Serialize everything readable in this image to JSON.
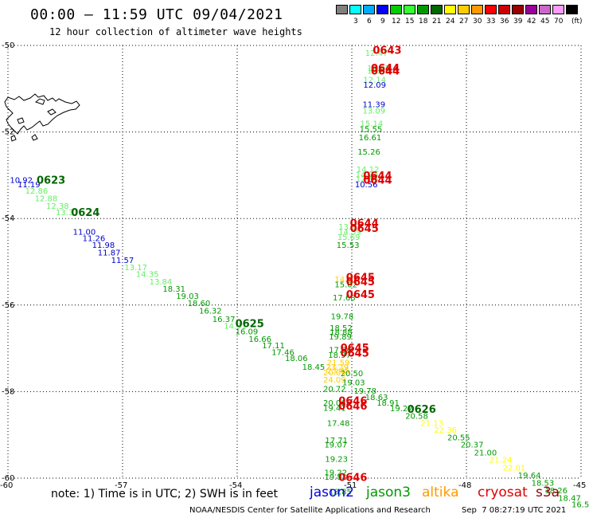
{
  "header": {
    "title": "00:00 — 11:59 UTC 09/04/2021",
    "subtitle": "12 hour collection of altimeter wave heights"
  },
  "colorbar": {
    "unit": "(ft)",
    "swatches": [
      {
        "color": "#808080",
        "label": ""
      },
      {
        "color": "#00ffff",
        "label": "3"
      },
      {
        "color": "#00aaff",
        "label": "6"
      },
      {
        "color": "#0000ff",
        "label": "9"
      },
      {
        "color": "#00cc00",
        "label": "12"
      },
      {
        "color": "#33ff33",
        "label": "15"
      },
      {
        "color": "#009900",
        "label": "18"
      },
      {
        "color": "#006600",
        "label": "21"
      },
      {
        "color": "#ffff00",
        "label": "24"
      },
      {
        "color": "#ffcc00",
        "label": "27"
      },
      {
        "color": "#ff9900",
        "label": "30"
      },
      {
        "color": "#ff0000",
        "label": "33"
      },
      {
        "color": "#cc0000",
        "label": "36"
      },
      {
        "color": "#990000",
        "label": "39"
      },
      {
        "color": "#990099",
        "label": "42"
      },
      {
        "color": "#cc66cc",
        "label": "45"
      },
      {
        "color": "#ff99ff",
        "label": "70"
      },
      {
        "color": "#000000",
        "label": ""
      }
    ]
  },
  "axes": {
    "lat_ticks": [
      "-50",
      "-52",
      "-54",
      "-56",
      "-58",
      "-60"
    ],
    "lon_ticks": [
      "-60",
      "-57",
      "-54",
      "-51",
      "-48",
      "-45"
    ]
  },
  "observations": [
    {
      "lon": -50.65,
      "lat": -50.17,
      "text": "12.47",
      "color": "#66ee66"
    },
    {
      "lon": -50.6,
      "lat": -50.52,
      "text": "12.65",
      "color": "#66ee66"
    },
    {
      "lon": -50.6,
      "lat": -50.58,
      "text": "12.88",
      "color": "#66ee66"
    },
    {
      "lon": -50.7,
      "lat": -50.78,
      "text": "12.14",
      "color": "#66ee66"
    },
    {
      "lon": -50.7,
      "lat": -50.9,
      "text": "12.09",
      "color": "#0000cc"
    },
    {
      "lon": -50.72,
      "lat": -51.35,
      "text": "11.39",
      "color": "#0000cc"
    },
    {
      "lon": -50.72,
      "lat": -51.5,
      "text": "13.09",
      "color": "#66ee66"
    },
    {
      "lon": -50.78,
      "lat": -51.8,
      "text": "15.14",
      "color": "#66ee66"
    },
    {
      "lon": -50.8,
      "lat": -51.92,
      "text": "15.55",
      "color": "#009900"
    },
    {
      "lon": -50.82,
      "lat": -52.12,
      "text": "16.61",
      "color": "#009900"
    },
    {
      "lon": -50.85,
      "lat": -52.45,
      "text": "15.26",
      "color": "#009900"
    },
    {
      "lon": -50.88,
      "lat": -52.85,
      "text": "14.12",
      "color": "#66ee66"
    },
    {
      "lon": -50.9,
      "lat": -52.97,
      "text": "14.24",
      "color": "#66ee66"
    },
    {
      "lon": -50.9,
      "lat": -53.08,
      "text": "12.55",
      "color": "#66ee66"
    },
    {
      "lon": -50.92,
      "lat": -53.2,
      "text": "10.56",
      "color": "#0000cc"
    },
    {
      "lon": -51.35,
      "lat": -54.18,
      "text": "13.53",
      "color": "#66ee66"
    },
    {
      "lon": -51.35,
      "lat": -54.3,
      "text": "14.59",
      "color": "#66ee66"
    },
    {
      "lon": -51.38,
      "lat": -54.42,
      "text": "15.69",
      "color": "#66ee66"
    },
    {
      "lon": -51.4,
      "lat": -54.6,
      "text": "15.53",
      "color": "#009900"
    },
    {
      "lon": -51.45,
      "lat": -55.4,
      "text": "14.93",
      "color": "#ffcc00"
    },
    {
      "lon": -51.45,
      "lat": -55.52,
      "text": "15.02",
      "color": "#009900"
    },
    {
      "lon": -51.5,
      "lat": -55.82,
      "text": "17.68",
      "color": "#009900"
    },
    {
      "lon": -51.55,
      "lat": -56.25,
      "text": "19.78",
      "color": "#009900"
    },
    {
      "lon": -51.58,
      "lat": -56.52,
      "text": "18.52",
      "color": "#009900"
    },
    {
      "lon": -51.58,
      "lat": -56.62,
      "text": "18.88",
      "color": "#009900"
    },
    {
      "lon": -51.6,
      "lat": -56.72,
      "text": "19.89",
      "color": "#009900"
    },
    {
      "lon": -51.6,
      "lat": -57.03,
      "text": "17.96",
      "color": "#009900"
    },
    {
      "lon": -51.62,
      "lat": -57.15,
      "text": "18.97",
      "color": "#009900"
    },
    {
      "lon": -51.65,
      "lat": -57.32,
      "text": "21.59",
      "color": "#ffcc00"
    },
    {
      "lon": -51.68,
      "lat": -57.42,
      "text": "23.29",
      "color": "#ffcc00"
    },
    {
      "lon": -51.65,
      "lat": -57.5,
      "text": "23.45",
      "color": "#ffcc00"
    },
    {
      "lon": -51.3,
      "lat": -57.57,
      "text": "20.50",
      "color": "#009900"
    },
    {
      "lon": -51.75,
      "lat": -57.55,
      "text": "20.09",
      "color": "#ffcc00"
    },
    {
      "lon": -51.75,
      "lat": -57.72,
      "text": "24.09",
      "color": "#ffcc00"
    },
    {
      "lon": -51.75,
      "lat": -57.93,
      "text": "20.72",
      "color": "#009900"
    },
    {
      "lon": -51.25,
      "lat": -57.78,
      "text": "19.03",
      "color": "#009900"
    },
    {
      "lon": -50.95,
      "lat": -57.97,
      "text": "19.78",
      "color": "#009900"
    },
    {
      "lon": -50.65,
      "lat": -58.12,
      "text": "18.63",
      "color": "#009900"
    },
    {
      "lon": -50.35,
      "lat": -58.25,
      "text": "18.91",
      "color": "#009900"
    },
    {
      "lon": -51.75,
      "lat": -58.25,
      "text": "20.06",
      "color": "#009900"
    },
    {
      "lon": -51.75,
      "lat": -58.37,
      "text": "19.41",
      "color": "#009900"
    },
    {
      "lon": -51.65,
      "lat": -58.72,
      "text": "17.48",
      "color": "#009900"
    },
    {
      "lon": -51.7,
      "lat": -59.12,
      "text": "17.71",
      "color": "#009900"
    },
    {
      "lon": -51.72,
      "lat": -59.22,
      "text": "19.07",
      "color": "#009900"
    },
    {
      "lon": -51.7,
      "lat": -59.55,
      "text": "19.23",
      "color": "#009900"
    },
    {
      "lon": -51.72,
      "lat": -59.86,
      "text": "19.22",
      "color": "#009900"
    },
    {
      "lon": -51.72,
      "lat": -59.96,
      "text": "19.81",
      "color": "#009900"
    },
    {
      "lon": -51.6,
      "lat": -60.3,
      "text": "18.85",
      "color": "#009900"
    },
    {
      "lon": -59.95,
      "lat": -53.1,
      "text": "10.92",
      "color": "#0000cc"
    },
    {
      "lon": -59.75,
      "lat": -53.2,
      "text": "11.19",
      "color": "#0000cc"
    },
    {
      "lon": -59.55,
      "lat": -53.35,
      "text": "12.86",
      "color": "#66ee66"
    },
    {
      "lon": -59.3,
      "lat": -53.53,
      "text": "12.88",
      "color": "#66ee66"
    },
    {
      "lon": -59.0,
      "lat": -53.7,
      "text": "12.38",
      "color": "#66ee66"
    },
    {
      "lon": -58.75,
      "lat": -53.85,
      "text": "13.37",
      "color": "#66ee66"
    },
    {
      "lon": -58.3,
      "lat": -54.3,
      "text": "11.00",
      "color": "#0000cc"
    },
    {
      "lon": -58.05,
      "lat": -54.45,
      "text": "11.26",
      "color": "#0000cc"
    },
    {
      "lon": -57.8,
      "lat": -54.6,
      "text": "11.98",
      "color": "#0000cc"
    },
    {
      "lon": -57.65,
      "lat": -54.78,
      "text": "11.87",
      "color": "#0000cc"
    },
    {
      "lon": -57.3,
      "lat": -54.95,
      "text": "11.57",
      "color": "#0000cc"
    },
    {
      "lon": -56.95,
      "lat": -55.12,
      "text": "13.17",
      "color": "#66ee66"
    },
    {
      "lon": -56.65,
      "lat": -55.28,
      "text": "14.35",
      "color": "#66ee66"
    },
    {
      "lon": -56.3,
      "lat": -55.45,
      "text": "13.84",
      "color": "#66ee66"
    },
    {
      "lon": -55.95,
      "lat": -55.62,
      "text": "18.31",
      "color": "#009900"
    },
    {
      "lon": -55.6,
      "lat": -55.78,
      "text": "19.03",
      "color": "#009900"
    },
    {
      "lon": -55.3,
      "lat": -55.95,
      "text": "18.60",
      "color": "#009900"
    },
    {
      "lon": -55.0,
      "lat": -56.12,
      "text": "16.32",
      "color": "#009900"
    },
    {
      "lon": -54.65,
      "lat": -56.32,
      "text": "16.37",
      "color": "#009900"
    },
    {
      "lon": -54.35,
      "lat": -56.47,
      "text": "14.91",
      "color": "#66ee66"
    },
    {
      "lon": -54.05,
      "lat": -56.6,
      "text": "16.09",
      "color": "#009900"
    },
    {
      "lon": -53.7,
      "lat": -56.78,
      "text": "16.66",
      "color": "#009900"
    },
    {
      "lon": -53.35,
      "lat": -56.92,
      "text": "17.11",
      "color": "#009900"
    },
    {
      "lon": -53.1,
      "lat": -57.08,
      "text": "17.46",
      "color": "#009900"
    },
    {
      "lon": -52.75,
      "lat": -57.22,
      "text": "18.06",
      "color": "#009900"
    },
    {
      "lon": -52.3,
      "lat": -57.42,
      "text": "18.45",
      "color": "#009900"
    },
    {
      "lon": -50.0,
      "lat": -58.38,
      "text": "19.27",
      "color": "#009900"
    },
    {
      "lon": -49.6,
      "lat": -58.55,
      "text": "20.58",
      "color": "#009900"
    },
    {
      "lon": -49.2,
      "lat": -58.72,
      "text": "21.13",
      "color": "#ffff00"
    },
    {
      "lon": -48.85,
      "lat": -58.88,
      "text": "22.36",
      "color": "#ffff00"
    },
    {
      "lon": -48.5,
      "lat": -59.05,
      "text": "20.55",
      "color": "#009900"
    },
    {
      "lon": -48.15,
      "lat": -59.22,
      "text": "20.37",
      "color": "#009900"
    },
    {
      "lon": -47.8,
      "lat": -59.4,
      "text": "21.00",
      "color": "#009900"
    },
    {
      "lon": -47.4,
      "lat": -59.57,
      "text": "21.24",
      "color": "#ffff00"
    },
    {
      "lon": -47.05,
      "lat": -59.75,
      "text": "22.01",
      "color": "#ffff00"
    },
    {
      "lon": -46.65,
      "lat": -59.93,
      "text": "19.64",
      "color": "#009900"
    },
    {
      "lon": -46.3,
      "lat": -60.1,
      "text": "18.53",
      "color": "#009900"
    },
    {
      "lon": -45.95,
      "lat": -60.28,
      "text": "18.26",
      "color": "#009900"
    },
    {
      "lon": -45.6,
      "lat": -60.45,
      "text": "18.47",
      "color": "#009900"
    },
    {
      "lon": -45.25,
      "lat": -60.6,
      "text": "16.52",
      "color": "#009900"
    }
  ],
  "time_labels": [
    {
      "lon": -50.45,
      "lat": -50.1,
      "text": "0643",
      "color": "#dd0000"
    },
    {
      "lon": -50.5,
      "lat": -50.52,
      "text": "0644",
      "color": "#dd0000"
    },
    {
      "lon": -50.5,
      "lat": -50.58,
      "text": "0644",
      "color": "#dd0000"
    },
    {
      "lon": -50.7,
      "lat": -53.0,
      "text": "0644",
      "color": "#dd0000"
    },
    {
      "lon": -50.7,
      "lat": -53.1,
      "text": "0644",
      "color": "#dd0000"
    },
    {
      "lon": -51.05,
      "lat": -54.1,
      "text": "0644",
      "color": "#dd0000"
    },
    {
      "lon": -51.05,
      "lat": -54.22,
      "text": "0645",
      "color": "#dd0000"
    },
    {
      "lon": -51.15,
      "lat": -55.35,
      "text": "0645",
      "color": "#dd0000"
    },
    {
      "lon": -51.15,
      "lat": -55.45,
      "text": "0645",
      "color": "#dd0000"
    },
    {
      "lon": -51.15,
      "lat": -55.75,
      "text": "0645",
      "color": "#dd0000"
    },
    {
      "lon": -51.3,
      "lat": -56.98,
      "text": "0645",
      "color": "#dd0000"
    },
    {
      "lon": -51.3,
      "lat": -57.1,
      "text": "0645",
      "color": "#dd0000"
    },
    {
      "lon": -51.35,
      "lat": -58.2,
      "text": "0646",
      "color": "#dd0000"
    },
    {
      "lon": -51.35,
      "lat": -58.32,
      "text": "0646",
      "color": "#dd0000"
    },
    {
      "lon": -51.35,
      "lat": -59.97,
      "text": "0646",
      "color": "#dd0000"
    },
    {
      "lon": -59.25,
      "lat": -53.1,
      "text": "0623",
      "color": "#006600"
    },
    {
      "lon": -58.35,
      "lat": -53.85,
      "text": "0624",
      "color": "#006600"
    },
    {
      "lon": -54.05,
      "lat": -56.42,
      "text": "0625",
      "color": "#006600"
    },
    {
      "lon": -49.55,
      "lat": -58.4,
      "text": "0626",
      "color": "#006600"
    }
  ],
  "legend": {
    "note": "note: 1) Time is in UTC; 2) SWH is in feet",
    "satellites": [
      {
        "name": "jason2",
        "color": "#0000dd"
      },
      {
        "name": "jason3",
        "color": "#009900"
      },
      {
        "name": "altika",
        "color": "#ff9900"
      },
      {
        "name": "cryosat",
        "color": "#dd0000"
      },
      {
        "name": "s3a",
        "color": "#990000"
      }
    ]
  },
  "footer": {
    "credit": "NOAA/NESDIS Center for Satellite Applications and Research",
    "timestamp": "Sep  7 08:27:19 UTC 2021"
  }
}
